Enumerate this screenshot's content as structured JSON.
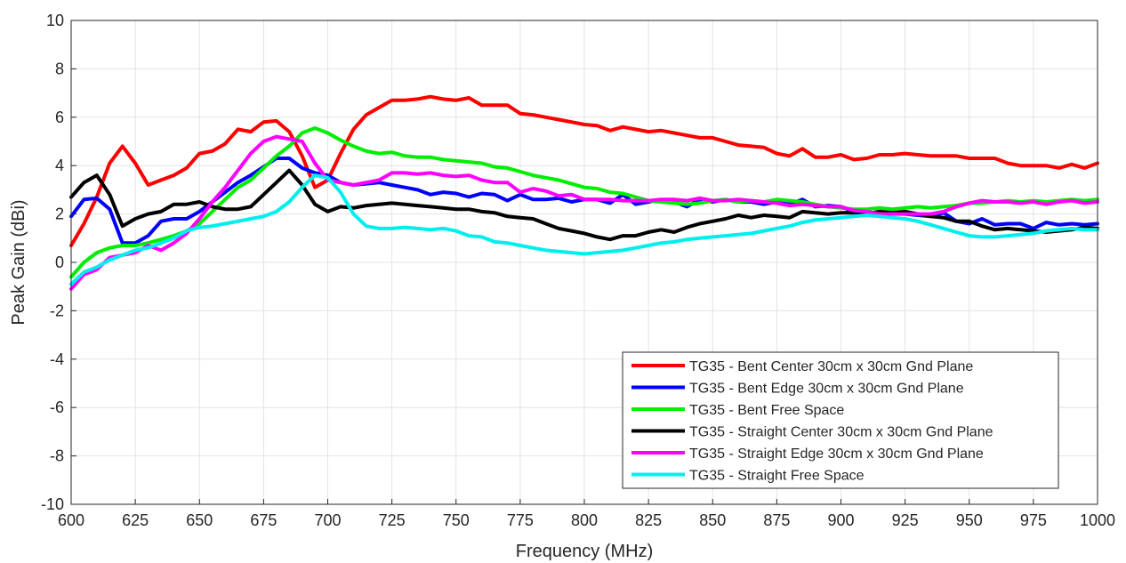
{
  "chart_data": {
    "type": "line",
    "xlabel": "Frequency (MHz)",
    "ylabel": "Peak Gain (dBi)",
    "xlim": [
      600,
      1000
    ],
    "ylim": [
      -10,
      10
    ],
    "xticks": [
      600,
      625,
      650,
      675,
      700,
      725,
      750,
      775,
      800,
      825,
      850,
      875,
      900,
      925,
      950,
      975,
      1000
    ],
    "yticks": [
      -10,
      -8,
      -6,
      -4,
      -2,
      0,
      2,
      4,
      6,
      8,
      10
    ],
    "grid": true,
    "legend_position": "bottom-right",
    "x": [
      600,
      605,
      610,
      615,
      620,
      625,
      630,
      635,
      640,
      645,
      650,
      655,
      660,
      665,
      670,
      675,
      680,
      685,
      690,
      695,
      700,
      705,
      710,
      715,
      720,
      725,
      730,
      735,
      740,
      745,
      750,
      755,
      760,
      765,
      770,
      775,
      780,
      785,
      790,
      795,
      800,
      805,
      810,
      815,
      820,
      825,
      830,
      835,
      840,
      845,
      850,
      855,
      860,
      865,
      870,
      875,
      880,
      885,
      890,
      895,
      900,
      905,
      910,
      915,
      920,
      925,
      930,
      935,
      940,
      945,
      950,
      955,
      960,
      965,
      970,
      975,
      980,
      985,
      990,
      995,
      1000
    ],
    "series": [
      {
        "name": "TG35 - Bent Center 30cm x 30cm Gnd Plane",
        "color": "#ff0000",
        "values": [
          0.7,
          1.6,
          2.7,
          4.1,
          4.8,
          4.1,
          3.2,
          3.4,
          3.6,
          3.9,
          4.5,
          4.6,
          4.9,
          5.5,
          5.4,
          5.8,
          5.85,
          5.4,
          4.4,
          3.1,
          3.4,
          4.5,
          5.5,
          6.1,
          6.4,
          6.7,
          6.7,
          6.75,
          6.85,
          6.75,
          6.7,
          6.8,
          6.5,
          6.5,
          6.5,
          6.15,
          6.1,
          6.0,
          5.9,
          5.8,
          5.7,
          5.65,
          5.45,
          5.6,
          5.5,
          5.4,
          5.45,
          5.35,
          5.25,
          5.15,
          5.15,
          5.0,
          4.85,
          4.8,
          4.75,
          4.5,
          4.4,
          4.7,
          4.35,
          4.35,
          4.45,
          4.25,
          4.3,
          4.45,
          4.45,
          4.5,
          4.45,
          4.4,
          4.4,
          4.4,
          4.3,
          4.3,
          4.3,
          4.1,
          4.0,
          4.0,
          4.0,
          3.9,
          4.05,
          3.9,
          4.1
        ]
      },
      {
        "name": "TG35 - Bent Edge 30cm x 30cm Gnd Plane",
        "color": "#0000ff",
        "values": [
          1.9,
          2.6,
          2.65,
          2.2,
          0.8,
          0.8,
          1.1,
          1.7,
          1.8,
          1.8,
          2.1,
          2.5,
          2.9,
          3.3,
          3.6,
          3.95,
          4.3,
          4.3,
          3.9,
          3.7,
          3.6,
          3.3,
          3.2,
          3.25,
          3.3,
          3.2,
          3.1,
          3.0,
          2.8,
          2.9,
          2.85,
          2.7,
          2.85,
          2.8,
          2.55,
          2.8,
          2.6,
          2.6,
          2.65,
          2.5,
          2.6,
          2.6,
          2.45,
          2.8,
          2.4,
          2.5,
          2.6,
          2.5,
          2.3,
          2.6,
          2.5,
          2.6,
          2.5,
          2.5,
          2.4,
          2.5,
          2.4,
          2.6,
          2.3,
          2.35,
          2.3,
          2.1,
          2.1,
          2.0,
          2.05,
          2.0,
          1.95,
          1.9,
          2.05,
          1.7,
          1.6,
          1.8,
          1.55,
          1.6,
          1.6,
          1.4,
          1.65,
          1.55,
          1.6,
          1.55,
          1.6
        ]
      },
      {
        "name": "TG35 - Bent Free Space",
        "color": "#00ee00",
        "values": [
          -0.6,
          0.0,
          0.4,
          0.6,
          0.7,
          0.7,
          0.8,
          0.95,
          1.1,
          1.3,
          1.6,
          2.1,
          2.6,
          3.1,
          3.4,
          3.9,
          4.4,
          4.8,
          5.35,
          5.55,
          5.35,
          5.05,
          4.8,
          4.6,
          4.5,
          4.55,
          4.4,
          4.35,
          4.35,
          4.25,
          4.2,
          4.15,
          4.1,
          3.95,
          3.9,
          3.75,
          3.6,
          3.5,
          3.4,
          3.25,
          3.1,
          3.05,
          2.9,
          2.85,
          2.7,
          2.55,
          2.5,
          2.45,
          2.4,
          2.45,
          2.55,
          2.6,
          2.5,
          2.55,
          2.5,
          2.6,
          2.55,
          2.5,
          2.4,
          2.3,
          2.25,
          2.2,
          2.2,
          2.25,
          2.2,
          2.25,
          2.3,
          2.25,
          2.3,
          2.35,
          2.45,
          2.45,
          2.5,
          2.55,
          2.5,
          2.55,
          2.5,
          2.55,
          2.6,
          2.55,
          2.6
        ]
      },
      {
        "name": "TG35 - Straight Center 30cm x 30cm Gnd Plane",
        "color": "#000000",
        "values": [
          2.7,
          3.3,
          3.6,
          2.8,
          1.5,
          1.8,
          2.0,
          2.1,
          2.4,
          2.4,
          2.5,
          2.3,
          2.2,
          2.2,
          2.3,
          2.8,
          3.3,
          3.8,
          3.2,
          2.4,
          2.1,
          2.3,
          2.25,
          2.35,
          2.4,
          2.45,
          2.4,
          2.35,
          2.3,
          2.25,
          2.2,
          2.2,
          2.1,
          2.05,
          1.9,
          1.85,
          1.8,
          1.6,
          1.4,
          1.3,
          1.2,
          1.05,
          0.95,
          1.1,
          1.1,
          1.25,
          1.35,
          1.25,
          1.45,
          1.6,
          1.7,
          1.8,
          1.95,
          1.85,
          1.95,
          1.9,
          1.85,
          2.1,
          2.05,
          2.0,
          2.05,
          2.05,
          2.0,
          2.1,
          2.05,
          2.1,
          2.0,
          1.9,
          1.85,
          1.7,
          1.7,
          1.5,
          1.35,
          1.4,
          1.35,
          1.3,
          1.25,
          1.3,
          1.35,
          1.45,
          1.4
        ]
      },
      {
        "name": "TG35 - Straight Edge 30cm x 30cm Gnd Plane",
        "color": "#ff00ff",
        "values": [
          -1.1,
          -0.5,
          -0.3,
          0.2,
          0.3,
          0.4,
          0.7,
          0.5,
          0.8,
          1.2,
          1.8,
          2.5,
          3.1,
          3.8,
          4.5,
          5.0,
          5.2,
          5.1,
          5.0,
          4.1,
          3.4,
          3.3,
          3.2,
          3.3,
          3.4,
          3.7,
          3.7,
          3.65,
          3.7,
          3.6,
          3.55,
          3.6,
          3.4,
          3.3,
          3.3,
          2.9,
          3.05,
          2.95,
          2.75,
          2.8,
          2.6,
          2.6,
          2.6,
          2.55,
          2.55,
          2.55,
          2.6,
          2.6,
          2.55,
          2.65,
          2.55,
          2.55,
          2.6,
          2.55,
          2.5,
          2.45,
          2.35,
          2.4,
          2.35,
          2.3,
          2.3,
          2.15,
          2.1,
          2.0,
          2.0,
          2.0,
          2.0,
          2.0,
          2.1,
          2.3,
          2.45,
          2.55,
          2.5,
          2.5,
          2.45,
          2.5,
          2.4,
          2.5,
          2.55,
          2.45,
          2.5
        ]
      },
      {
        "name": "TG35 - Straight Free Space",
        "color": "#00eeee",
        "values": [
          -0.9,
          -0.4,
          -0.2,
          0.1,
          0.3,
          0.5,
          0.6,
          0.8,
          1.0,
          1.3,
          1.45,
          1.5,
          1.6,
          1.7,
          1.8,
          1.9,
          2.1,
          2.5,
          3.1,
          3.6,
          3.5,
          2.9,
          2.0,
          1.5,
          1.4,
          1.4,
          1.45,
          1.4,
          1.35,
          1.4,
          1.3,
          1.1,
          1.05,
          0.85,
          0.8,
          0.7,
          0.6,
          0.5,
          0.45,
          0.4,
          0.35,
          0.4,
          0.45,
          0.5,
          0.6,
          0.7,
          0.8,
          0.85,
          0.95,
          1.0,
          1.05,
          1.1,
          1.15,
          1.2,
          1.3,
          1.4,
          1.5,
          1.65,
          1.75,
          1.8,
          1.85,
          1.9,
          1.95,
          1.9,
          1.85,
          1.8,
          1.7,
          1.55,
          1.4,
          1.25,
          1.1,
          1.05,
          1.05,
          1.1,
          1.15,
          1.2,
          1.3,
          1.35,
          1.4,
          1.35,
          1.35
        ]
      }
    ]
  }
}
